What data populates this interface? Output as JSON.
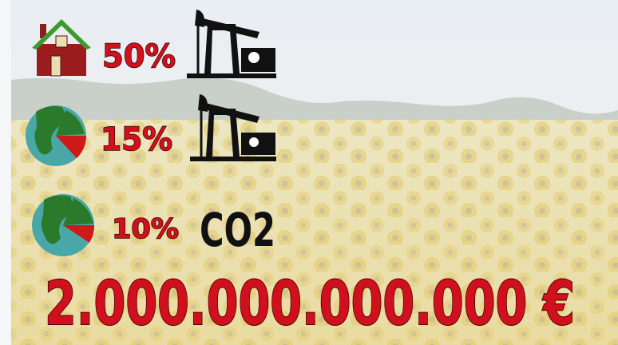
{
  "rows": [
    {
      "label": "50%"
    },
    {
      "label": "15%"
    },
    {
      "label": "10%",
      "unit": "CO2"
    }
  ],
  "total": "2.000.000.000.000 €"
}
